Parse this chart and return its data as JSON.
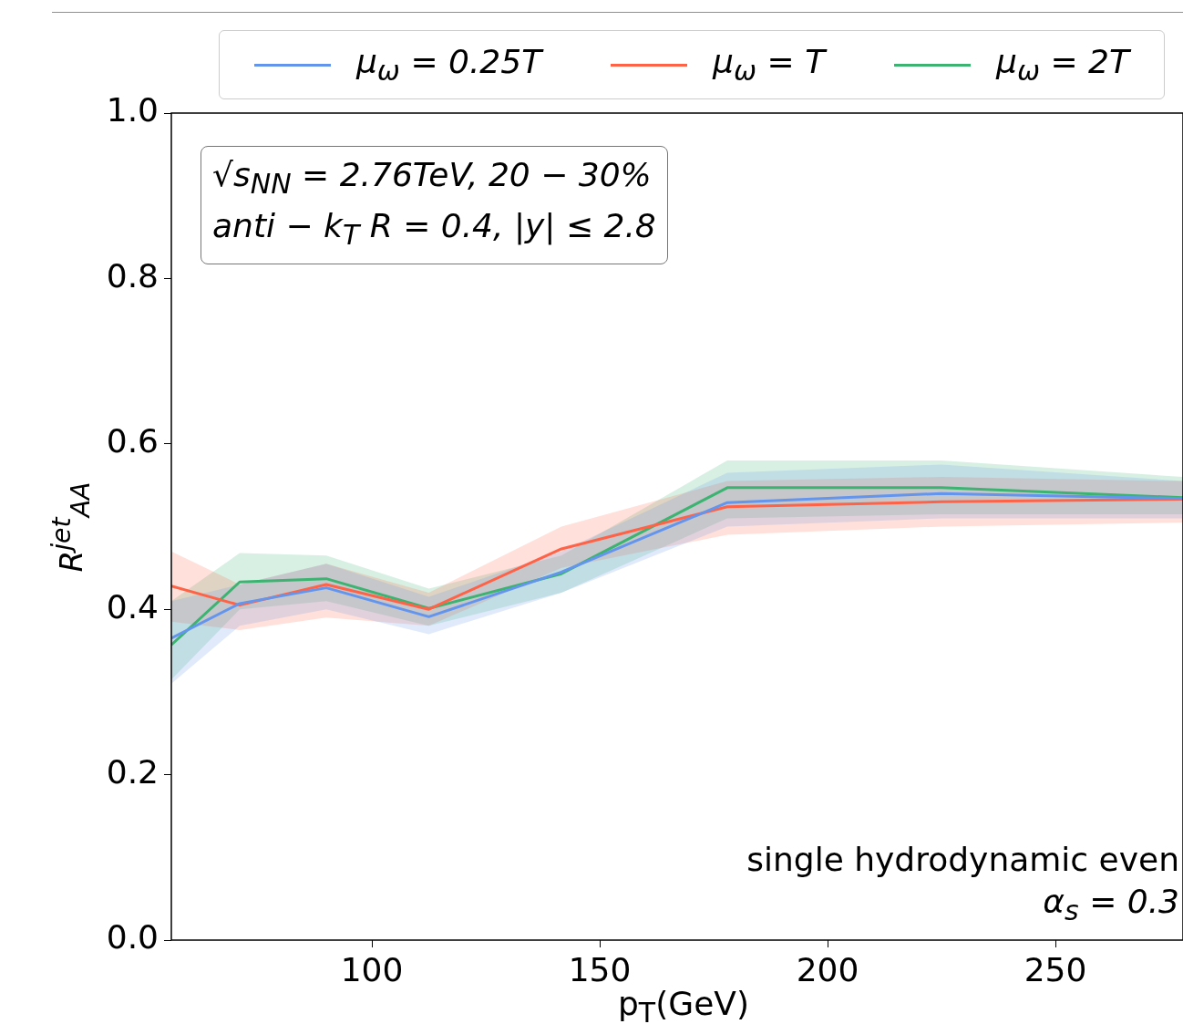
{
  "chart_data": {
    "type": "line",
    "xlabel": "p$_{T}$(GeV)",
    "ylabel": "R$^{jet}$$_{AA}$",
    "x": [
      56,
      71,
      90,
      112.5,
      141.6,
      178,
      225,
      278
    ],
    "series": [
      {
        "name": "μ$_{ω}$ = 0.25T",
        "color": "#6495ed",
        "values": [
          0.365,
          0.407,
          0.426,
          0.391,
          0.445,
          0.529,
          0.54,
          0.534
        ],
        "lower": [
          0.31,
          0.38,
          0.4,
          0.37,
          0.42,
          0.5,
          0.51,
          0.51
        ],
        "upper": [
          0.41,
          0.43,
          0.455,
          0.415,
          0.47,
          0.565,
          0.575,
          0.555
        ]
      },
      {
        "name": "μ$_{ω}$ = T",
        "color": "#ff6347",
        "values": [
          0.428,
          0.405,
          0.43,
          0.4,
          0.473,
          0.524,
          0.53,
          0.533
        ],
        "lower": [
          0.385,
          0.375,
          0.39,
          0.38,
          0.45,
          0.49,
          0.5,
          0.505
        ],
        "upper": [
          0.47,
          0.43,
          0.455,
          0.42,
          0.5,
          0.555,
          0.56,
          0.555
        ]
      },
      {
        "name": "μ$_{ω}$ = 2T",
        "color": "#3cb371",
        "values": [
          0.357,
          0.433,
          0.437,
          0.401,
          0.443,
          0.547,
          0.547,
          0.535
        ],
        "lower": [
          0.315,
          0.4,
          0.41,
          0.38,
          0.42,
          0.51,
          0.515,
          0.515
        ],
        "upper": [
          0.41,
          0.468,
          0.465,
          0.425,
          0.465,
          0.58,
          0.58,
          0.56
        ]
      }
    ],
    "xlim": [
      56,
      278
    ],
    "xticks": [
      100,
      150,
      200,
      250
    ],
    "ylim": [
      0,
      1
    ],
    "yticks": [
      {
        "value": 0,
        "label": "0.0"
      },
      {
        "value": 0.2,
        "label": "0.2"
      },
      {
        "value": 0.4,
        "label": "0.4"
      },
      {
        "value": 0.6,
        "label": "0.6"
      },
      {
        "value": 0.8,
        "label": "0.8"
      },
      {
        "value": 1,
        "label": "1.0"
      }
    ],
    "grid": false,
    "legend": "top",
    "marker": "none",
    "line_style": "solid",
    "annotations": [
      "√s$_{NN}$ = 2.76TeV, 20 − 30%",
      "anti − k$_{T}$ R = 0.4, |y| ≤ 2.8",
      "single hydrodynamic even",
      "α$_{s}$ = 0.3"
    ]
  }
}
